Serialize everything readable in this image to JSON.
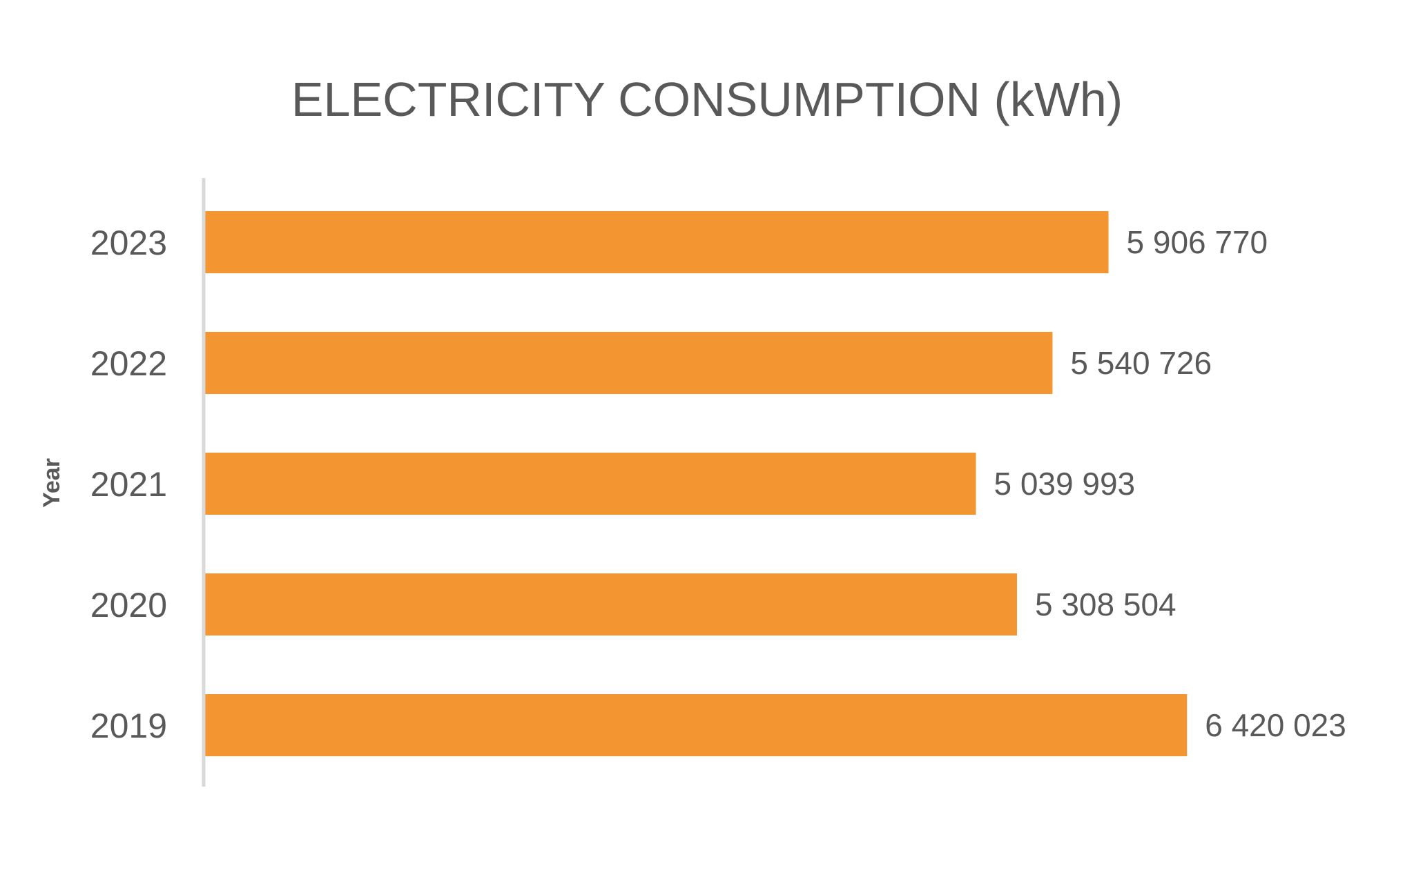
{
  "chart_data": {
    "type": "bar",
    "orientation": "horizontal",
    "title": "ELECTRICITY CONSUMPTION (kWh)",
    "ylabel": "Year",
    "xlabel": "",
    "categories": [
      "2023",
      "2022",
      "2021",
      "2020",
      "2019"
    ],
    "values": [
      5906770,
      5540726,
      5039993,
      5308504,
      6420023
    ],
    "value_labels": [
      "5 906 770",
      "5 540 726",
      "5 039 993",
      "5 308 504",
      "6 420 023"
    ],
    "xlim": [
      0,
      7200000
    ],
    "grid": false,
    "legend": "none",
    "bar_color": "#F39530",
    "axis_color": "#D9D9D9",
    "text_color": "#595959"
  }
}
